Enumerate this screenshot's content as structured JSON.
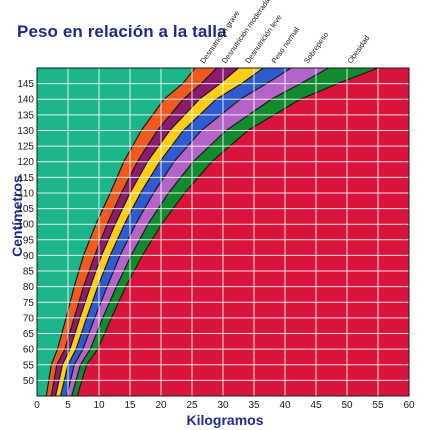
{
  "title": "Peso en relación a la talla",
  "chart_data": {
    "type": "area",
    "title": "Peso en relación a la talla",
    "xlabel": "Kilogramos",
    "ylabel": "Centímetros",
    "xlim": [
      0,
      60
    ],
    "ylim": [
      45,
      150
    ],
    "xticks": [
      0,
      5,
      10,
      15,
      20,
      25,
      30,
      35,
      40,
      45,
      50,
      55,
      60
    ],
    "yticks": [
      50,
      55,
      60,
      65,
      70,
      75,
      80,
      85,
      90,
      95,
      100,
      105,
      110,
      115,
      120,
      125,
      130,
      135,
      140,
      145
    ],
    "grid": true,
    "height_cm": [
      45,
      55,
      60,
      70,
      80,
      90,
      100,
      110,
      120,
      130,
      140,
      145,
      150
    ],
    "boundaries_kg": [
      [
        1.5,
        2.3,
        3.3,
        4.7,
        6.0,
        7.5,
        9.5,
        11.8,
        14.0,
        16.8,
        20.5,
        23.5,
        25.5
      ],
      [
        2.3,
        3.2,
        4.5,
        6.0,
        7.5,
        9.3,
        11.3,
        13.6,
        16.2,
        19.4,
        23.6,
        26.5,
        29.0
      ],
      [
        3.0,
        4.1,
        5.3,
        6.9,
        8.6,
        10.4,
        12.6,
        15.0,
        17.8,
        21.4,
        26.2,
        29.5,
        32.5
      ],
      [
        3.8,
        5.0,
        6.3,
        8.0,
        9.8,
        11.8,
        14.1,
        16.7,
        19.8,
        23.6,
        28.9,
        33.0,
        36.5
      ],
      [
        4.8,
        6.0,
        7.4,
        9.3,
        11.3,
        13.4,
        15.9,
        18.8,
        22.1,
        26.5,
        32.8,
        37.0,
        41.0
      ],
      [
        5.6,
        7.0,
        8.6,
        10.6,
        12.8,
        15.2,
        17.9,
        21.2,
        25.2,
        30.5,
        37.8,
        42.5,
        47.0
      ],
      [
        6.5,
        8.0,
        9.8,
        12.0,
        14.3,
        17.0,
        20.1,
        23.8,
        28.2,
        34.0,
        42.5,
        48.5,
        55.0
      ]
    ],
    "series": [
      {
        "name": "Desnutrición grave",
        "color": "#f05a1e"
      },
      {
        "name": "Desnutrición moderada",
        "color": "#8c1a6e"
      },
      {
        "name": "Desnutrición leve",
        "color": "#ffcc1a"
      },
      {
        "name": "Peso normal",
        "color": "#2f5bd0"
      },
      {
        "name": "Sobrepeso",
        "color": "#b464c8"
      },
      {
        "name": "Obesidad",
        "color": "#128a2e"
      }
    ],
    "region_colors": {
      "below": "#1cb58a",
      "above": "#d8143c"
    }
  }
}
